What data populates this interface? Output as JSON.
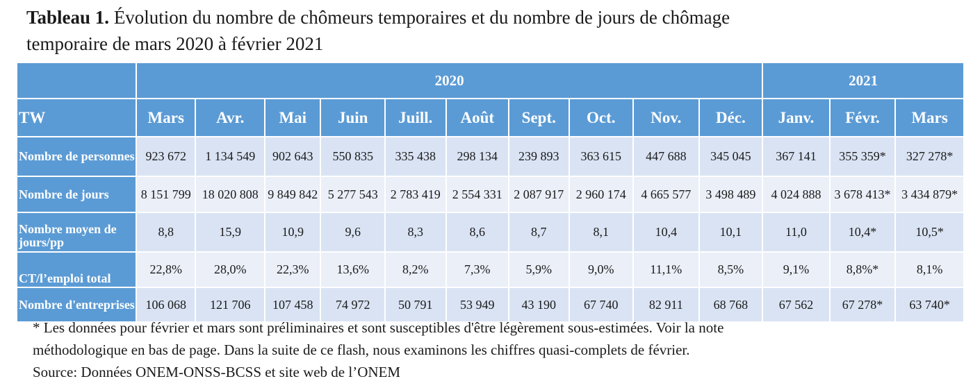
{
  "title": {
    "label": "Tableau 1.",
    "text_line1": "Évolution du nombre de chômeurs temporaires et du nombre de jours de chômage",
    "text_line2": "temporaire de mars 2020 à février 2021"
  },
  "table": {
    "years": [
      {
        "label": "2020",
        "span": 10
      },
      {
        "label": "2021",
        "span": 3
      }
    ],
    "corner_label": "TW",
    "months": [
      "Mars",
      "Avr.",
      "Mai",
      "Juin",
      "Juill.",
      "Août",
      "Sept.",
      "Oct.",
      "Nov.",
      "Déc.",
      "Janv.",
      "Févr.",
      "Mars"
    ],
    "rows": [
      {
        "label": "Nombre de personnes",
        "values": [
          "923 672",
          "1 134 549",
          "902 643",
          "550 835",
          "335 438",
          "298 134",
          "239 893",
          "363 615",
          "447 688",
          "345 045",
          "367 141",
          "355 359*",
          "327 278*"
        ]
      },
      {
        "label": "Nombre de jours",
        "values": [
          "8 151 799",
          "18 020 808",
          "9 849 842",
          "5 277 543",
          "2 783 419",
          "2 554 331",
          "2 087 917",
          "2 960 174",
          "4 665 577",
          "3 498 489",
          "4 024 888",
          "3 678 413*",
          "3 434 879*"
        ]
      },
      {
        "label": "Nombre moyen de jours/pp",
        "values": [
          "8,8",
          "15,9",
          "10,9",
          "9,6",
          "8,3",
          "8,6",
          "8,7",
          "8,1",
          "10,4",
          "10,1",
          "11,0",
          "10,4*",
          "10,5*"
        ]
      },
      {
        "label": "CT/l’emploi total",
        "values": [
          "22,8%",
          "28,0%",
          "22,3%",
          "13,6%",
          "8,2%",
          "7,3%",
          "5,9%",
          "9,0%",
          "11,1%",
          "8,5%",
          "9,1%",
          "8,8%*",
          "8,1%"
        ]
      },
      {
        "label": "Nombre d'entreprises",
        "values": [
          "106 068",
          "121 706",
          "107 458",
          "74 972",
          "50 791",
          "53 949",
          "43 190",
          "67 740",
          "82 911",
          "68 768",
          "67 562",
          "67 278*",
          "63 740*"
        ]
      }
    ]
  },
  "notes": {
    "line1": "* Les données pour février et mars sont préliminaires et sont susceptibles d'être légèrement sous-estimées. Voir la note",
    "line2": "méthodologique en bas de page. Dans la suite de ce flash, nous examinons les chiffres quasi-complets de février.",
    "line3": "Source: Données ONEM-ONSS-BCSS et site web de l’ONEM"
  },
  "colors": {
    "header_blue": "#5b9bd5",
    "row_light": "#d9e3f3",
    "row_lighter": "#eaeff8"
  }
}
